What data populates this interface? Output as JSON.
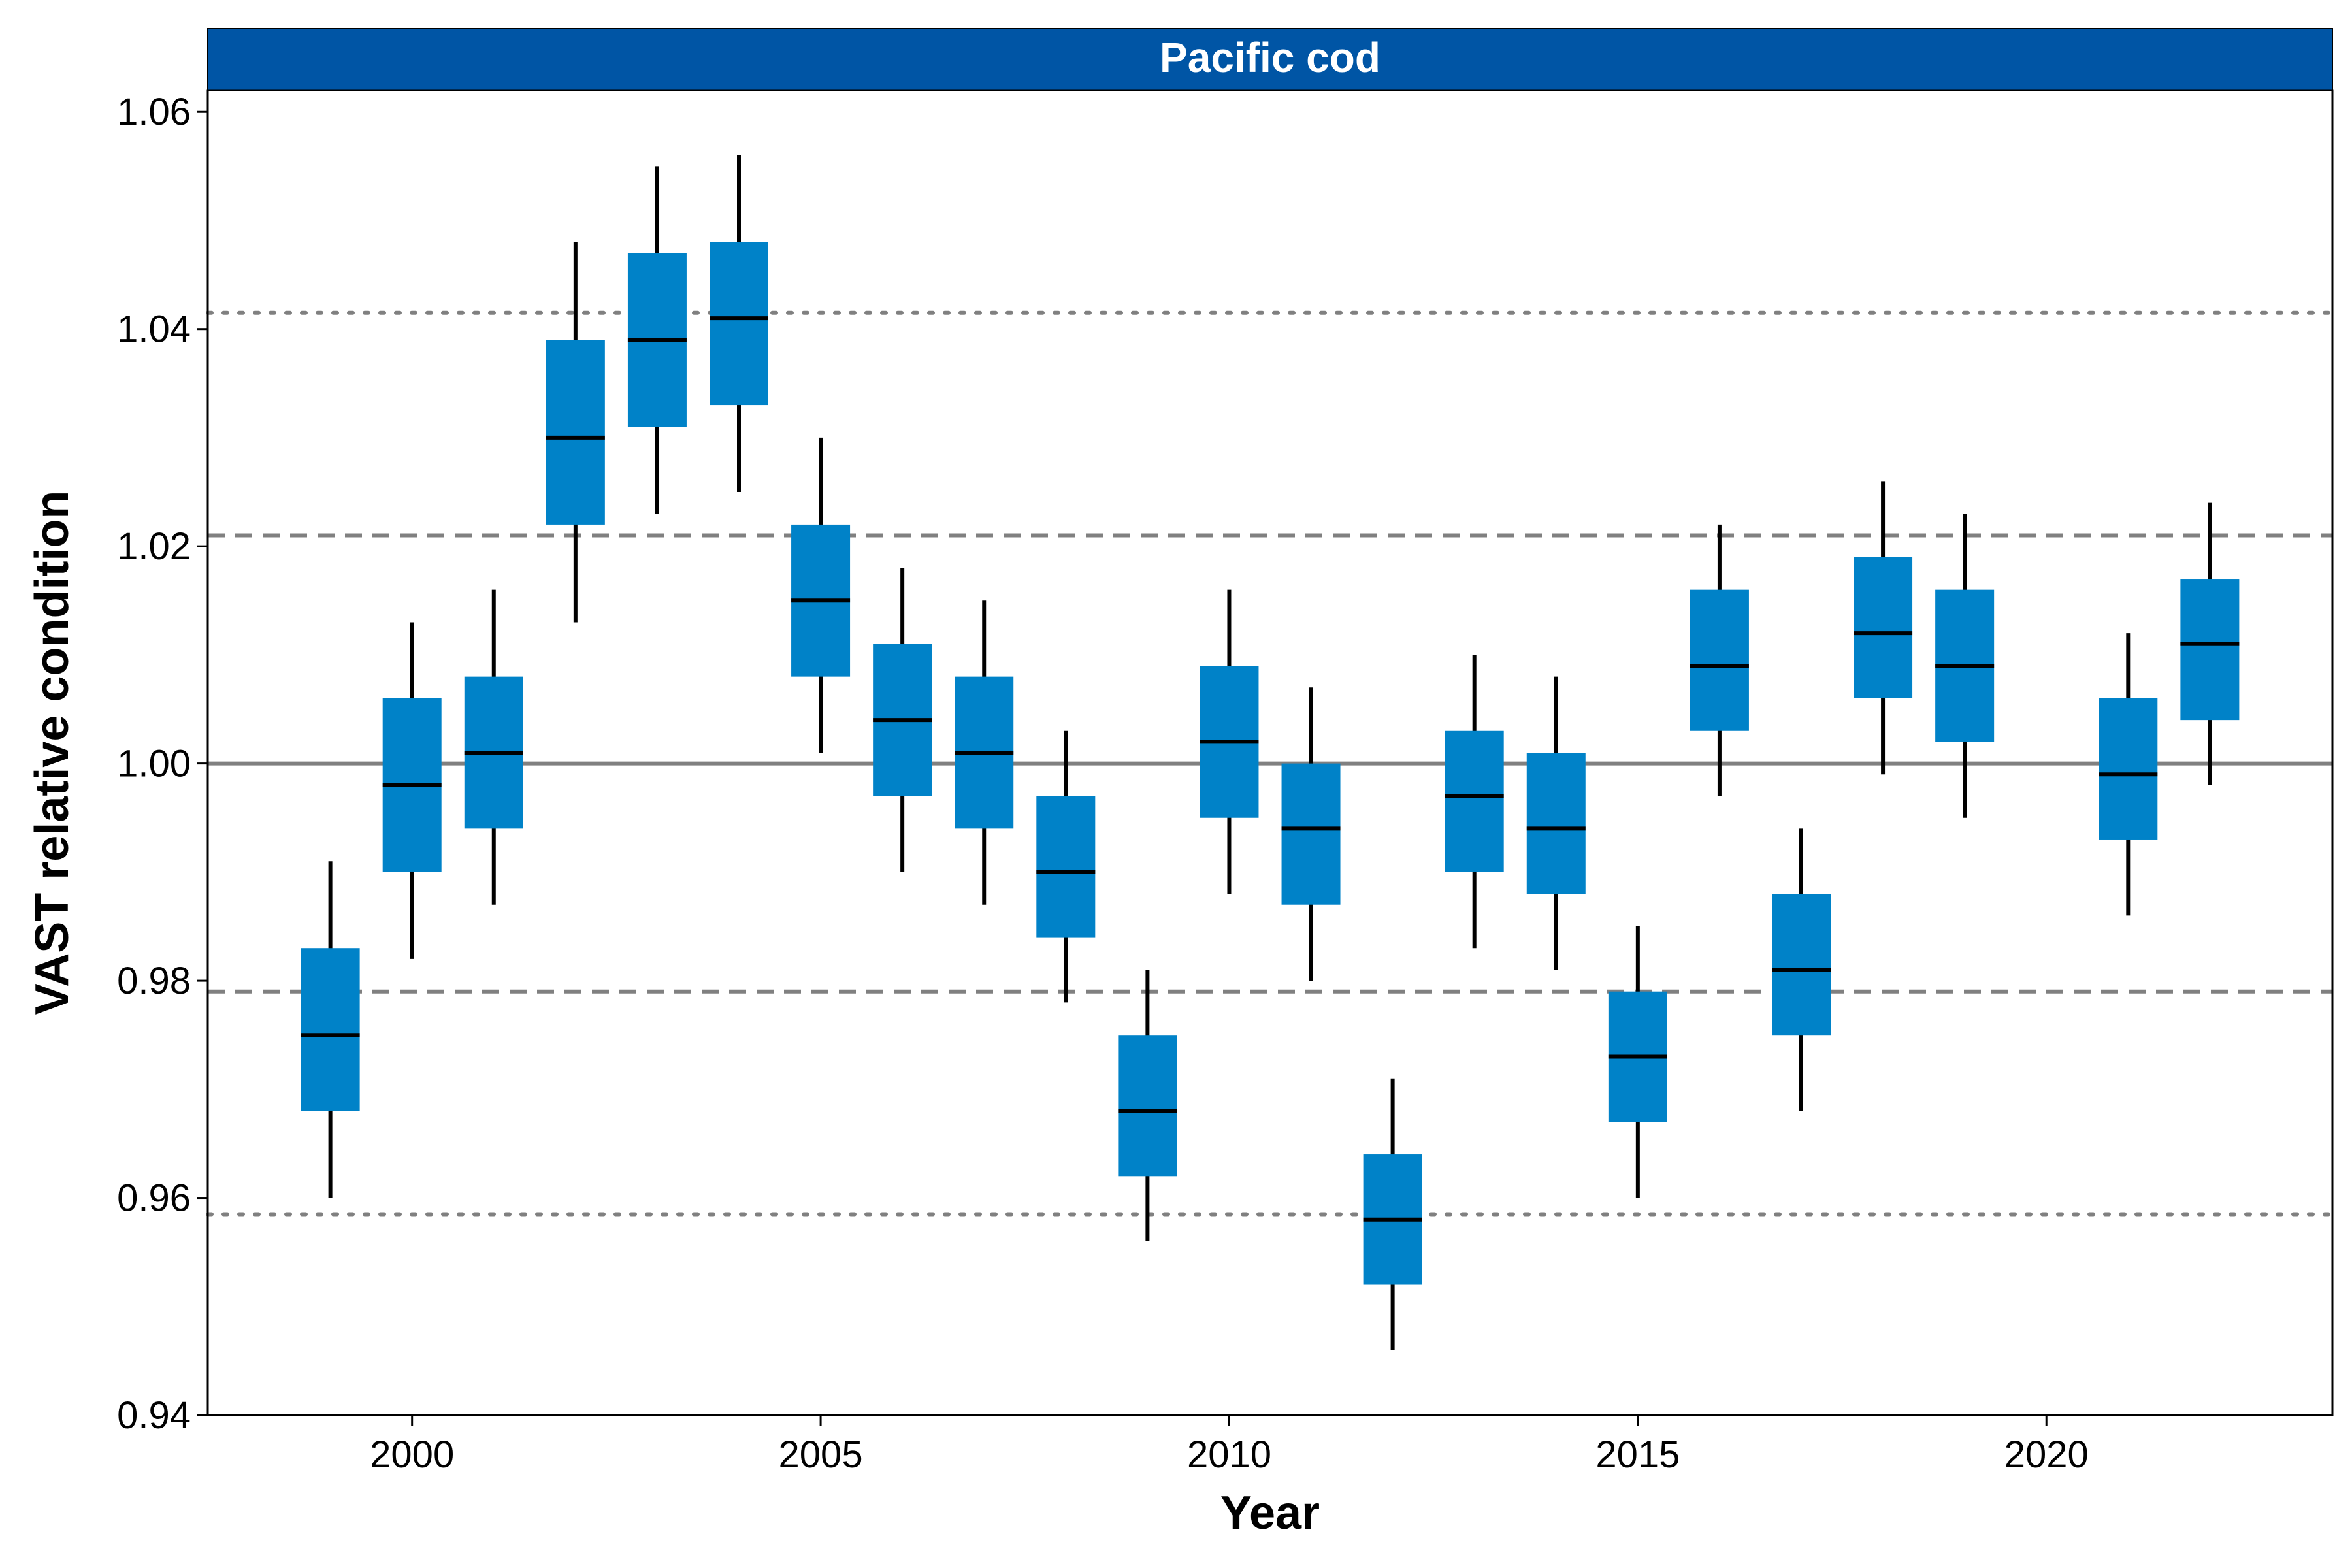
{
  "chart_data": {
    "type": "box",
    "title": "Pacific cod",
    "xlabel": "Year",
    "ylabel": "VAST relative condition",
    "xlim": [
      1997.5,
      2023.5
    ],
    "ylim": [
      0.94,
      1.062
    ],
    "xticks": [
      2000,
      2005,
      2010,
      2015,
      2020
    ],
    "xtick_labels": [
      "2000",
      "2005",
      "2010",
      "2015",
      "2020"
    ],
    "yticks": [
      0.94,
      0.96,
      0.98,
      1.0,
      1.02,
      1.04,
      1.06
    ],
    "ytick_labels": [
      "0.94",
      "0.96",
      "0.98",
      "1.00",
      "1.02",
      "1.04",
      "1.06"
    ],
    "grid": false,
    "colors": {
      "strip": "#0055A5",
      "box": "#0082C8",
      "reference_line": "#808080"
    },
    "reference_lines": [
      {
        "style": "solid",
        "y": 1.0
      },
      {
        "style": "dashed",
        "y": 1.021
      },
      {
        "style": "dashed",
        "y": 0.979
      },
      {
        "style": "dotted",
        "y": 1.0415
      },
      {
        "style": "dotted",
        "y": 0.9585
      }
    ],
    "series": [
      {
        "x": [
          1999,
          2000,
          2001,
          2002,
          2003,
          2004,
          2005,
          2006,
          2007,
          2008,
          2009,
          2010,
          2011,
          2012,
          2013,
          2014,
          2015,
          2016,
          2017,
          2018,
          2019,
          2021,
          2022
        ],
        "whisker_low": [
          0.96,
          0.982,
          0.987,
          1.013,
          1.023,
          1.025,
          1.001,
          0.99,
          0.987,
          0.978,
          0.956,
          0.988,
          0.98,
          0.946,
          0.983,
          0.981,
          0.96,
          0.997,
          0.968,
          0.999,
          0.995,
          0.986,
          0.998
        ],
        "q1": [
          0.968,
          0.99,
          0.994,
          1.022,
          1.031,
          1.033,
          1.008,
          0.997,
          0.994,
          0.984,
          0.962,
          0.995,
          0.987,
          0.952,
          0.99,
          0.988,
          0.967,
          1.003,
          0.975,
          1.006,
          1.002,
          0.993,
          1.004
        ],
        "median": [
          0.975,
          0.998,
          1.001,
          1.03,
          1.039,
          1.041,
          1.015,
          1.004,
          1.001,
          0.99,
          0.968,
          1.002,
          0.994,
          0.958,
          0.997,
          0.994,
          0.973,
          1.009,
          0.981,
          1.012,
          1.009,
          0.999,
          1.011
        ],
        "q3": [
          0.983,
          1.006,
          1.008,
          1.039,
          1.047,
          1.048,
          1.022,
          1.011,
          1.008,
          0.997,
          0.975,
          1.009,
          1.0,
          0.964,
          1.003,
          1.001,
          0.979,
          1.016,
          0.988,
          1.019,
          1.016,
          1.006,
          1.017
        ],
        "whisker_high": [
          0.991,
          1.013,
          1.016,
          1.048,
          1.055,
          1.056,
          1.03,
          1.018,
          1.015,
          1.003,
          0.981,
          1.016,
          1.007,
          0.971,
          1.01,
          1.008,
          0.985,
          1.022,
          0.994,
          1.026,
          1.023,
          1.012,
          1.024
        ]
      }
    ]
  }
}
